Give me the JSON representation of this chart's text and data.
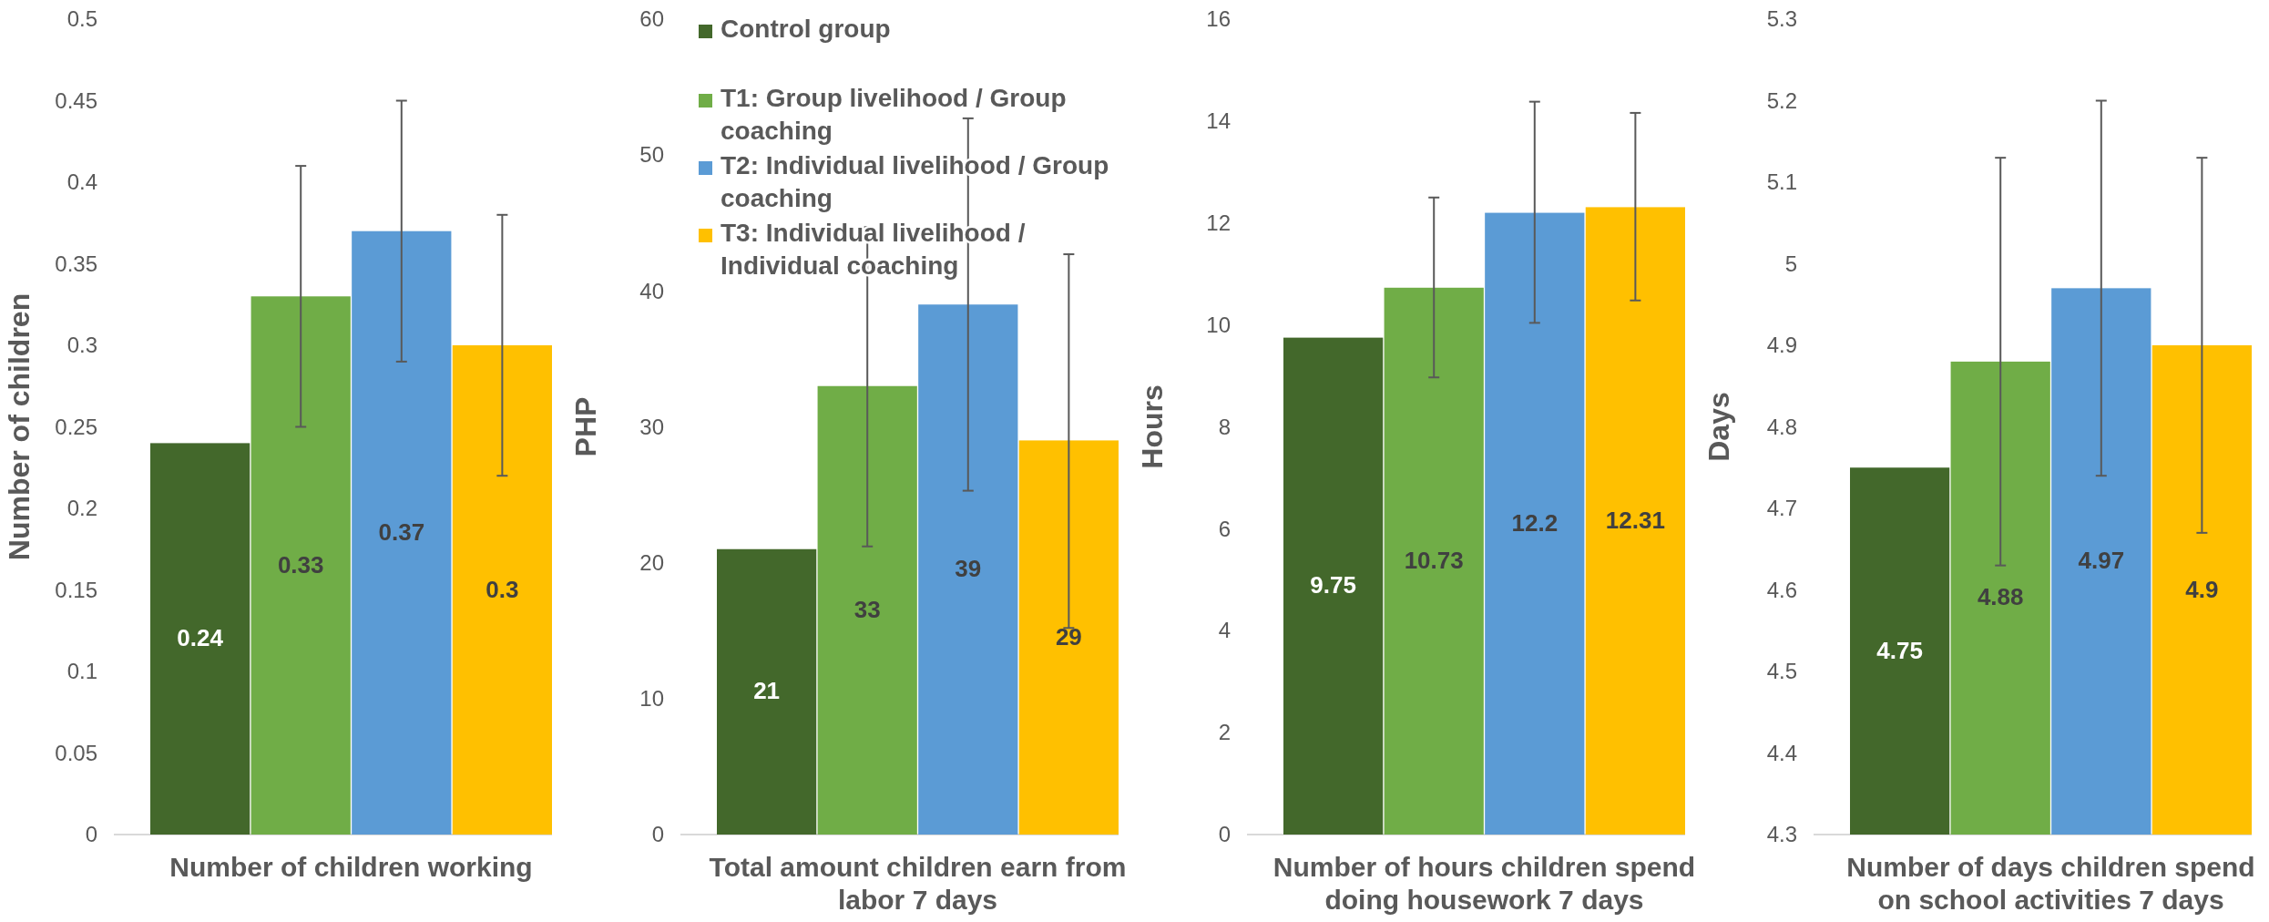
{
  "chart_data": [
    {
      "type": "bar",
      "ylabel": "Number of children",
      "xlabel": "Number of children working",
      "categories": [
        null,
        null,
        null,
        null
      ],
      "ylim": [
        0,
        0.5
      ],
      "yticks": [
        0,
        0.05,
        0.1,
        0.15,
        0.2,
        0.25,
        0.3,
        0.35,
        0.4,
        0.45,
        0.5
      ],
      "grid": false,
      "legend": false,
      "data_labels": true,
      "series": [
        {
          "color": "#43682b",
          "values": [
            0.24,
            null,
            null,
            null
          ]
        },
        {
          "color": "#70ad47",
          "values": [
            null,
            0.33,
            null,
            null
          ],
          "errors": [
            null,
            [
              0.25,
              0.41
            ],
            null,
            null
          ]
        },
        {
          "color": "#5b9bd5",
          "values": [
            null,
            null,
            0.37,
            null
          ],
          "errors": [
            null,
            null,
            [
              0.29,
              0.45
            ],
            null
          ]
        },
        {
          "color": "#ffc000",
          "values": [
            null,
            null,
            null,
            0.3
          ],
          "errors": [
            null,
            null,
            null,
            [
              0.22,
              0.38
            ]
          ]
        }
      ]
    },
    {
      "type": "bar",
      "ylabel": "PHP",
      "xlabel": "Total amount children earn from labor 7 days",
      "categories": [
        null,
        null,
        null,
        null
      ],
      "ylim": [
        0,
        60
      ],
      "yticks": [
        0,
        10,
        20,
        30,
        40,
        50,
        60
      ],
      "grid": false,
      "legend": "top left",
      "data_labels": true,
      "series": [
        {
          "name": "Control group",
          "color": "#43682b",
          "values": [
            21,
            null,
            null,
            null
          ]
        },
        {
          "name": "T1: Group livelihood / Group coaching",
          "color": "#70ad47",
          "values": [
            null,
            33,
            null,
            null
          ],
          "errors": [
            null,
            [
              21.2,
              44.7
            ],
            null,
            null
          ]
        },
        {
          "name": "T2: Individual livelihood / Group coaching",
          "color": "#5b9bd5",
          "values": [
            null,
            null,
            39,
            null
          ],
          "errors": [
            null,
            null,
            [
              25.3,
              52.7
            ],
            null
          ]
        },
        {
          "name": "T3: Individual livelihood / Individual coaching",
          "color": "#ffc000",
          "values": [
            null,
            null,
            null,
            29
          ],
          "errors": [
            null,
            null,
            null,
            [
              15.2,
              42.7
            ]
          ]
        }
      ]
    },
    {
      "type": "bar",
      "ylabel": "Hours",
      "xlabel": "Number of hours children spend doing housework 7 days",
      "categories": [
        null,
        null,
        null,
        null
      ],
      "ylim": [
        0,
        16
      ],
      "yticks": [
        0,
        2,
        4,
        6,
        8,
        10,
        12,
        14,
        16
      ],
      "grid": false,
      "legend": false,
      "data_labels": true,
      "series": [
        {
          "color": "#43682b",
          "values": [
            9.75,
            null,
            null,
            null
          ]
        },
        {
          "color": "#70ad47",
          "values": [
            null,
            10.73,
            null,
            null
          ],
          "errors": [
            null,
            [
              8.97,
              12.5
            ],
            null,
            null
          ]
        },
        {
          "color": "#5b9bd5",
          "values": [
            null,
            null,
            12.2,
            null
          ],
          "errors": [
            null,
            null,
            [
              10.04,
              14.38
            ],
            null
          ]
        },
        {
          "color": "#ffc000",
          "values": [
            null,
            null,
            null,
            12.31
          ],
          "errors": [
            null,
            null,
            null,
            [
              10.48,
              14.16
            ]
          ]
        }
      ]
    },
    {
      "type": "bar",
      "ylabel": "Days",
      "xlabel": "Number of days children spend on school activities 7 days",
      "categories": [
        null,
        null,
        null,
        null
      ],
      "ylim": [
        4.3,
        5.3
      ],
      "yticks": [
        4.3,
        4.4,
        4.5,
        4.6,
        4.7,
        4.8,
        4.9,
        5,
        5.1,
        5.2,
        5.3
      ],
      "grid": false,
      "legend": false,
      "data_labels": true,
      "series": [
        {
          "color": "#43682b",
          "values": [
            4.75,
            null,
            null,
            null
          ]
        },
        {
          "color": "#70ad47",
          "values": [
            null,
            4.88,
            null,
            null
          ],
          "errors": [
            null,
            [
              4.63,
              5.13
            ],
            null,
            null
          ]
        },
        {
          "color": "#5b9bd5",
          "values": [
            null,
            null,
            4.97,
            null
          ],
          "errors": [
            null,
            null,
            [
              4.74,
              5.2
            ],
            null
          ]
        },
        {
          "color": "#ffc000",
          "values": [
            null,
            null,
            null,
            4.9
          ],
          "errors": [
            null,
            null,
            null,
            [
              4.67,
              5.13
            ]
          ]
        }
      ]
    }
  ]
}
